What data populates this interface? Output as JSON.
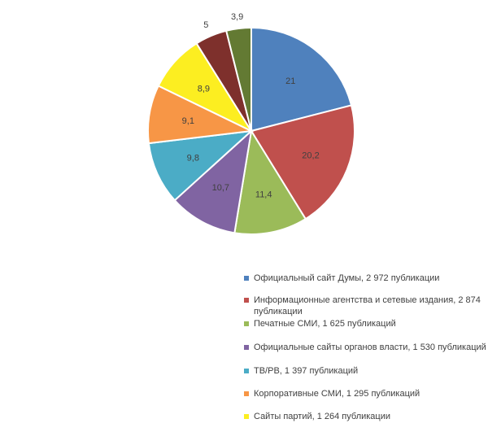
{
  "chart_data": {
    "type": "pie",
    "title": "",
    "start_angle_deg": 0,
    "direction": "clockwise",
    "unit": "percent",
    "values": [
      21,
      20.2,
      11.4,
      10.7,
      9.8,
      9.1,
      8.9,
      5,
      3.9
    ],
    "display_labels": [
      "21",
      "20,2",
      "11,4",
      "10,7",
      "9,8",
      "9,1",
      "8,9",
      "5",
      "3,9"
    ],
    "colors": [
      "#4F81BD",
      "#C0504D",
      "#9BBB59",
      "#8064A2",
      "#4BACC6",
      "#F79646",
      "#FCEE21",
      "#7E302C",
      "#637A33"
    ],
    "slice_border_color": "#FFFFFF",
    "label_color": "#404040",
    "legend_position": "bottom-right"
  },
  "legend": {
    "items": [
      {
        "label": "Официальный сайт Думы, 2 972 публикации",
        "color": "#4F81BD"
      },
      {
        "label": "Информационные агентства и сетевые издания, 2 874 публикации",
        "color": "#C0504D"
      },
      {
        "label": "Печатные СМИ, 1 625 публикаций",
        "color": "#9BBB59"
      },
      {
        "label": "Официальные сайты органов власти, 1 530 публикаций",
        "color": "#8064A2"
      },
      {
        "label": "ТВ/РВ, 1 397 публикаций",
        "color": "#4BACC6"
      },
      {
        "label": "Корпоративные СМИ, 1 295 публикаций",
        "color": "#F79646"
      },
      {
        "label": "Сайты партий, 1 264 публикации",
        "color": "#FCEE21"
      }
    ]
  }
}
